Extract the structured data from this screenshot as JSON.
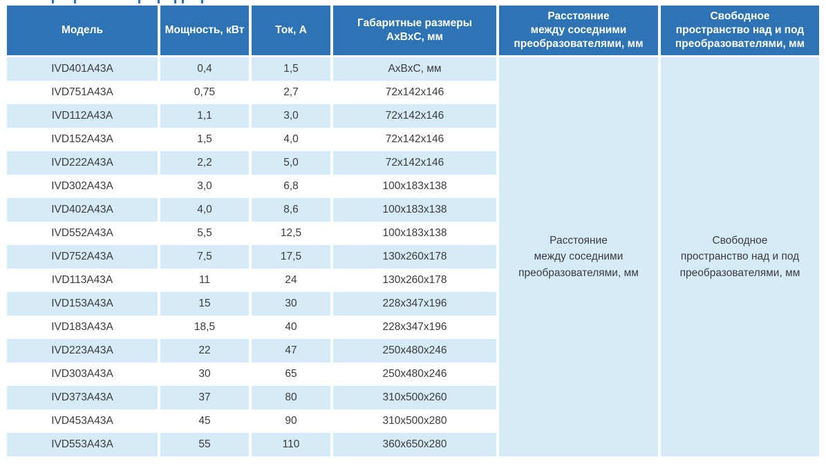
{
  "page": {
    "background": "#ffffff"
  },
  "colors": {
    "header_bg": "#2e74b5",
    "header_text": "#ffffff",
    "row_alt_bg": "#d6ebf8",
    "row_bg": "#ffffff",
    "body_text": "#3b3b3b"
  },
  "table": {
    "columns": [
      "Модель",
      "Мощность, кВт",
      "Ток, А",
      "Габаритные размеры\nАхВхС, мм",
      "Расстояние\nмежду соседними\nпреобразователями, мм",
      "Свободное\nпространство над и под\nпреобразователями, мм"
    ],
    "rows": [
      [
        "IVD401A43A",
        "0,4",
        "1,5",
        "АхВхС, мм"
      ],
      [
        "IVD751A43A",
        "0,75",
        "2,7",
        "72x142x146"
      ],
      [
        "IVD112A43A",
        "1,1",
        "3,0",
        "72x142x146"
      ],
      [
        "IVD152A43A",
        "1,5",
        "4,0",
        "72x142x146"
      ],
      [
        "IVD222A43A",
        "2,2",
        "5,0",
        "72x142x146"
      ],
      [
        "IVD302A43A",
        "3,0",
        "6,8",
        "100x183x138"
      ],
      [
        "IVD402A43A",
        "4,0",
        "8,6",
        "100x183x138"
      ],
      [
        "IVD552A43A",
        "5,5",
        "12,5",
        "100x183x138"
      ],
      [
        "IVD752A43A",
        "7,5",
        "17,5",
        "130x260x178"
      ],
      [
        "IVD113A43A",
        "11",
        "24",
        "130x260x178"
      ],
      [
        "IVD153A43A",
        "15",
        "30",
        "228x347x196"
      ],
      [
        "IVD183A43A",
        "18,5",
        "40",
        "228x347x196"
      ],
      [
        "IVD223A43A",
        "22",
        "47",
        "250x480x246"
      ],
      [
        "IVD303A43A",
        "30",
        "65",
        "250x480x246"
      ],
      [
        "IVD373A43A",
        "37",
        "80",
        "310x500x260"
      ],
      [
        "IVD453A43A",
        "45",
        "90",
        "310x500x280"
      ],
      [
        "IVD553A43A",
        "55",
        "110",
        "360x650x280"
      ]
    ],
    "merged": {
      "distance": "Расстояние\nмежду соседними\nпреобразователями, мм",
      "free_space": "Свободное\nпространство над и под\nпреобразователями, мм"
    }
  }
}
